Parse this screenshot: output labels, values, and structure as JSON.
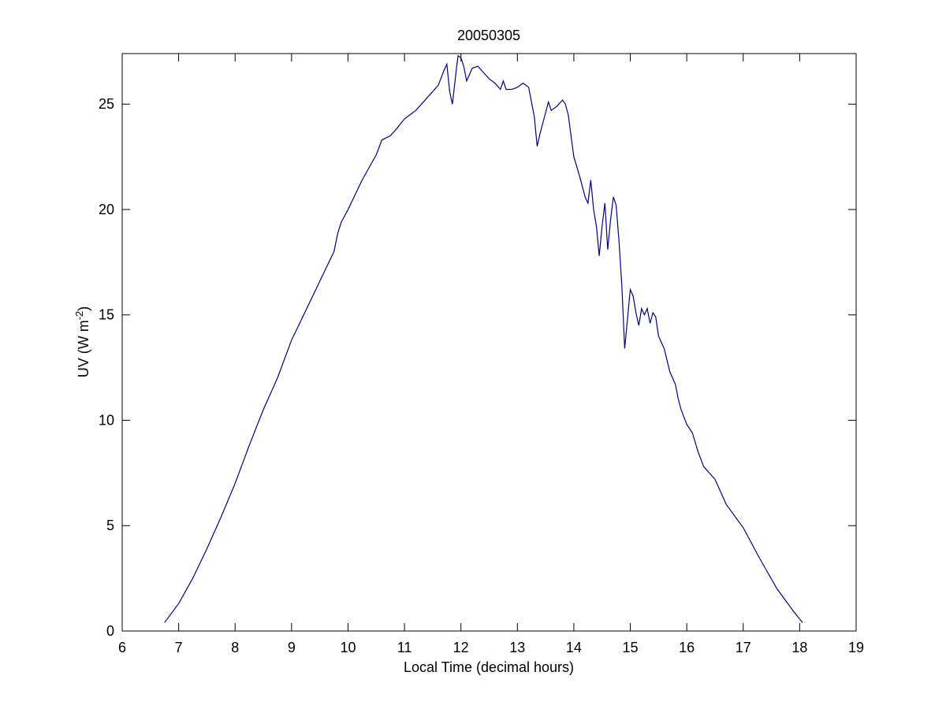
{
  "chart_data": {
    "type": "line",
    "title": "20050305",
    "xlabel": "Local Time (decimal hours)",
    "ylabel": {
      "base": "UV (W m",
      "superscript": "-2",
      "close": ")"
    },
    "xlim": [
      6,
      19
    ],
    "ylim": [
      0,
      27.4
    ],
    "xticks": [
      6,
      7,
      8,
      9,
      10,
      11,
      12,
      13,
      14,
      15,
      16,
      17,
      18,
      19
    ],
    "yticks": [
      0,
      5,
      10,
      15,
      20,
      25
    ],
    "grid": false,
    "legend": "none",
    "series": [
      {
        "color": "#00008b",
        "x": [
          6.75,
          7.0,
          7.25,
          7.5,
          7.75,
          8.0,
          8.25,
          8.5,
          8.75,
          9.0,
          9.25,
          9.5,
          9.75,
          9.82,
          9.88,
          10.0,
          10.25,
          10.5,
          10.6,
          10.75,
          10.85,
          11.0,
          11.1,
          11.2,
          11.3,
          11.4,
          11.5,
          11.6,
          11.7,
          11.75,
          11.8,
          11.85,
          11.92,
          11.95,
          12.0,
          12.05,
          12.1,
          12.2,
          12.3,
          12.4,
          12.5,
          12.6,
          12.7,
          12.75,
          12.8,
          12.9,
          13.0,
          13.1,
          13.2,
          13.3,
          13.35,
          13.4,
          13.5,
          13.55,
          13.6,
          13.7,
          13.8,
          13.85,
          13.9,
          14.0,
          14.1,
          14.2,
          14.25,
          14.3,
          14.35,
          14.4,
          14.45,
          14.5,
          14.55,
          14.6,
          14.65,
          14.7,
          14.75,
          14.8,
          14.85,
          14.9,
          15.0,
          15.05,
          15.1,
          15.15,
          15.2,
          15.25,
          15.3,
          15.35,
          15.4,
          15.45,
          15.5,
          15.55,
          15.6,
          15.7,
          15.8,
          15.85,
          15.9,
          16.0,
          16.1,
          16.2,
          16.3,
          16.4,
          16.5,
          16.7,
          17.0,
          17.3,
          17.6,
          17.9,
          18.05
        ],
        "y": [
          0.4,
          1.3,
          2.5,
          3.9,
          5.4,
          7.0,
          8.8,
          10.5,
          12.0,
          13.8,
          15.2,
          16.6,
          18.0,
          18.9,
          19.4,
          20.0,
          21.4,
          22.6,
          23.3,
          23.5,
          23.8,
          24.3,
          24.5,
          24.7,
          25.0,
          25.3,
          25.6,
          25.9,
          26.6,
          26.9,
          25.6,
          25.0,
          26.7,
          27.3,
          27.2,
          26.8,
          26.1,
          26.7,
          26.8,
          26.5,
          26.2,
          26.0,
          25.7,
          26.1,
          25.7,
          25.7,
          25.8,
          26.0,
          25.8,
          24.4,
          23.0,
          23.6,
          24.6,
          25.1,
          24.7,
          24.9,
          25.2,
          25.0,
          24.5,
          22.5,
          21.6,
          20.6,
          20.3,
          21.4,
          20.0,
          19.2,
          17.8,
          19.2,
          20.3,
          18.1,
          19.5,
          20.6,
          20.2,
          18.5,
          16.4,
          13.4,
          16.2,
          15.9,
          15.1,
          14.5,
          15.3,
          15.0,
          15.3,
          14.6,
          15.1,
          14.9,
          14.0,
          13.7,
          13.4,
          12.3,
          11.7,
          11.0,
          10.5,
          9.8,
          9.4,
          8.5,
          7.8,
          7.5,
          7.2,
          6.0,
          4.9,
          3.4,
          2.0,
          0.9,
          0.4
        ]
      }
    ]
  }
}
